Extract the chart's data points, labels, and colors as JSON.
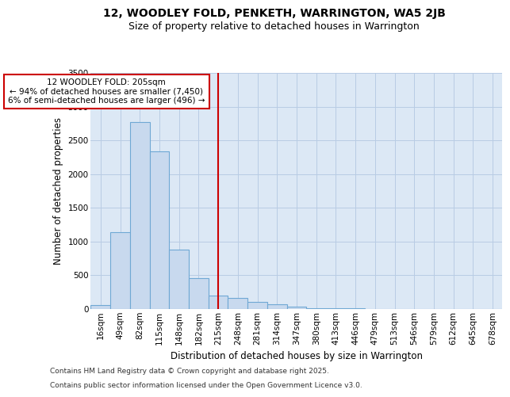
{
  "title_line1": "12, WOODLEY FOLD, PENKETH, WARRINGTON, WA5 2JB",
  "title_line2": "Size of property relative to detached houses in Warrington",
  "xlabel": "Distribution of detached houses by size in Warrington",
  "ylabel": "Number of detached properties",
  "footnote1": "Contains HM Land Registry data © Crown copyright and database right 2025.",
  "footnote2": "Contains public sector information licensed under the Open Government Licence v3.0.",
  "bar_labels": [
    "16sqm",
    "49sqm",
    "82sqm",
    "115sqm",
    "148sqm",
    "182sqm",
    "215sqm",
    "248sqm",
    "281sqm",
    "314sqm",
    "347sqm",
    "380sqm",
    "413sqm",
    "446sqm",
    "479sqm",
    "513sqm",
    "546sqm",
    "579sqm",
    "612sqm",
    "645sqm",
    "678sqm"
  ],
  "bar_values": [
    50,
    1130,
    2770,
    2340,
    880,
    450,
    195,
    155,
    95,
    60,
    30,
    10,
    5,
    5,
    0,
    0,
    0,
    0,
    0,
    0,
    0
  ],
  "bar_color": "#c8d9ee",
  "bar_edge_color": "#6fa8d4",
  "vline_x": 6.0,
  "vline_color": "#cc0000",
  "annotation_text": "12 WOODLEY FOLD: 205sqm\n← 94% of detached houses are smaller (7,450)\n6% of semi-detached houses are larger (496) →",
  "annotation_box_color": "white",
  "annotation_box_edge_color": "#cc0000",
  "ylim": [
    0,
    3500
  ],
  "background_color": "#ffffff",
  "plot_bg_color": "#dce8f5",
  "grid_color": "#b8cce4",
  "title_fontsize": 10,
  "subtitle_fontsize": 9,
  "axis_label_fontsize": 8.5,
  "tick_fontsize": 7.5,
  "annotation_fontsize": 7.5,
  "footnote_fontsize": 6.5
}
